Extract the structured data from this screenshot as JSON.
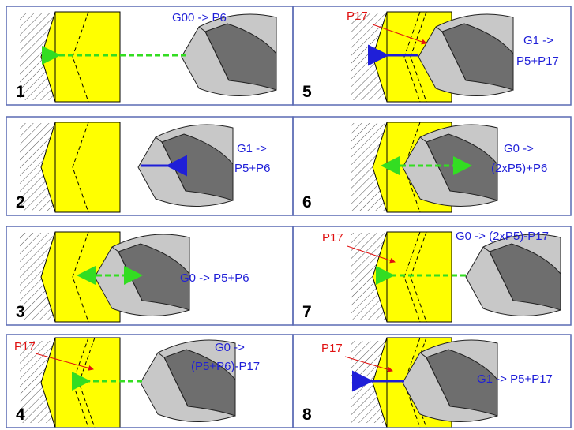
{
  "panels": [
    {
      "number": "1",
      "command": [
        "G00 -> P6"
      ]
    },
    {
      "number": "2",
      "command": [
        "G1 ->",
        "P5+P6"
      ]
    },
    {
      "number": "3",
      "command": [
        "G0 -> P5+P6"
      ]
    },
    {
      "number": "4",
      "label": "P17",
      "command": [
        "G0 ->",
        "(P5+P6)-P17"
      ]
    },
    {
      "number": "5",
      "label": "P17",
      "command": [
        "G1 ->",
        "P5+P17"
      ]
    },
    {
      "number": "6",
      "command": [
        "G0 ->",
        "(2xP5)+P6"
      ]
    },
    {
      "number": "7",
      "label": "P17",
      "command": [
        "G0 -> (2xP5)-P17"
      ]
    },
    {
      "number": "8",
      "label": "P17",
      "command": [
        "G1 -> P5+P17"
      ]
    }
  ],
  "colors": {
    "workpiece": "#ffff00",
    "hatch": "#555555",
    "frame": "#5a6ab4",
    "rapid_arrow": "#33dd22",
    "feed_arrow": "#1f1fd8",
    "label_red": "#e01010",
    "tool_light": "#c8c8c8",
    "tool_dark": "#6e6e6e"
  }
}
